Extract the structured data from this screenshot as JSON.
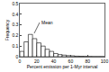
{
  "chart_data": {
    "type": "histogram",
    "xlabel": "Percent emission per 1-Myr interval",
    "ylabel": "Frequency",
    "bins": [
      0,
      5,
      10,
      15,
      20,
      25,
      30,
      35,
      40,
      45,
      50,
      55,
      60,
      65,
      70,
      75,
      80,
      85,
      90,
      95,
      100
    ],
    "values": [
      0.05,
      0.14,
      0.21,
      0.17,
      0.13,
      0.1,
      0.07,
      0.05,
      0.03,
      0.02,
      0.015,
      0.01,
      0.008,
      0.005,
      0.004,
      0.003,
      0.002,
      0.001,
      0.001,
      0.001
    ],
    "color": "#ffffff",
    "xlim": [
      0,
      100
    ],
    "xticks": [
      0,
      20,
      40,
      60,
      80,
      100
    ],
    "ylim": [
      0,
      0.5
    ],
    "yticks": [
      0,
      0.1,
      0.2,
      0.3,
      0.4,
      0.5
    ],
    "annotations": [
      {
        "text": "Mean",
        "x": 17,
        "y": 0.22
      }
    ],
    "grid": false
  }
}
